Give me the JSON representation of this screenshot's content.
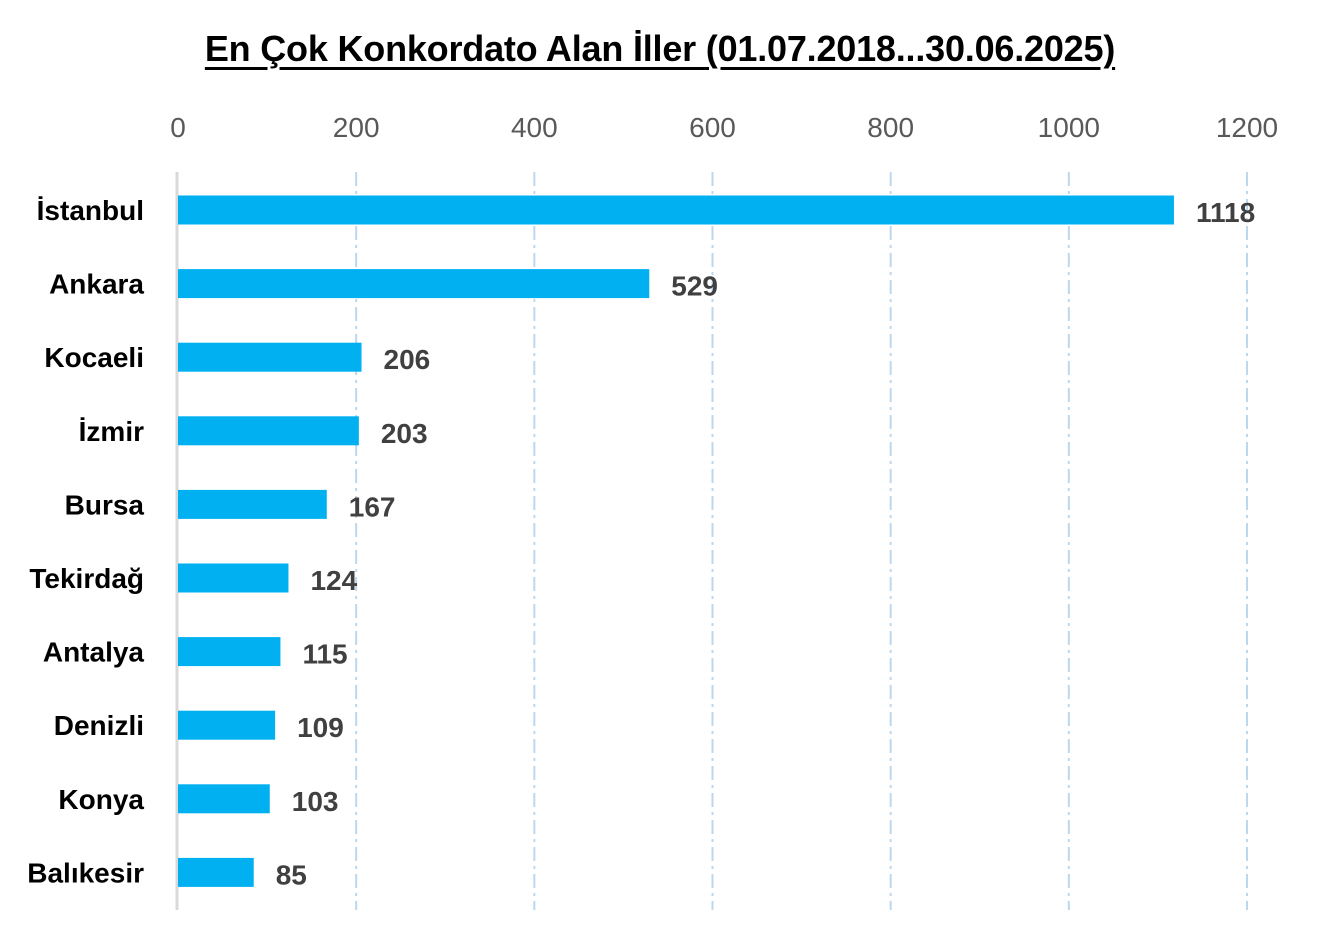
{
  "chart_data": {
    "type": "bar",
    "orientation": "horizontal",
    "title": "En Çok Konkordato Alan İller (01.07.2018...30.06.2025)",
    "categories": [
      "İstanbul",
      "Ankara",
      "Kocaeli",
      "İzmir",
      "Bursa",
      "Tekirdağ",
      "Antalya",
      "Denizli",
      "Konya",
      "Balıkesir"
    ],
    "values": [
      1118,
      529,
      206,
      203,
      167,
      124,
      115,
      109,
      103,
      85
    ],
    "xlim": [
      0,
      1200
    ],
    "x_ticks": [
      0,
      200,
      400,
      600,
      800,
      1000,
      1200
    ],
    "x_axis_position": "top",
    "grid": true,
    "grid_style": "dash-dot",
    "data_labels": true,
    "legend": "none",
    "colors": {
      "bar": "#00B0F0",
      "grid": "#BDD7EE",
      "axis": "#D9D9D9",
      "tick_label": "#595959",
      "value_label": "#404040",
      "category_label": "#000000"
    }
  }
}
